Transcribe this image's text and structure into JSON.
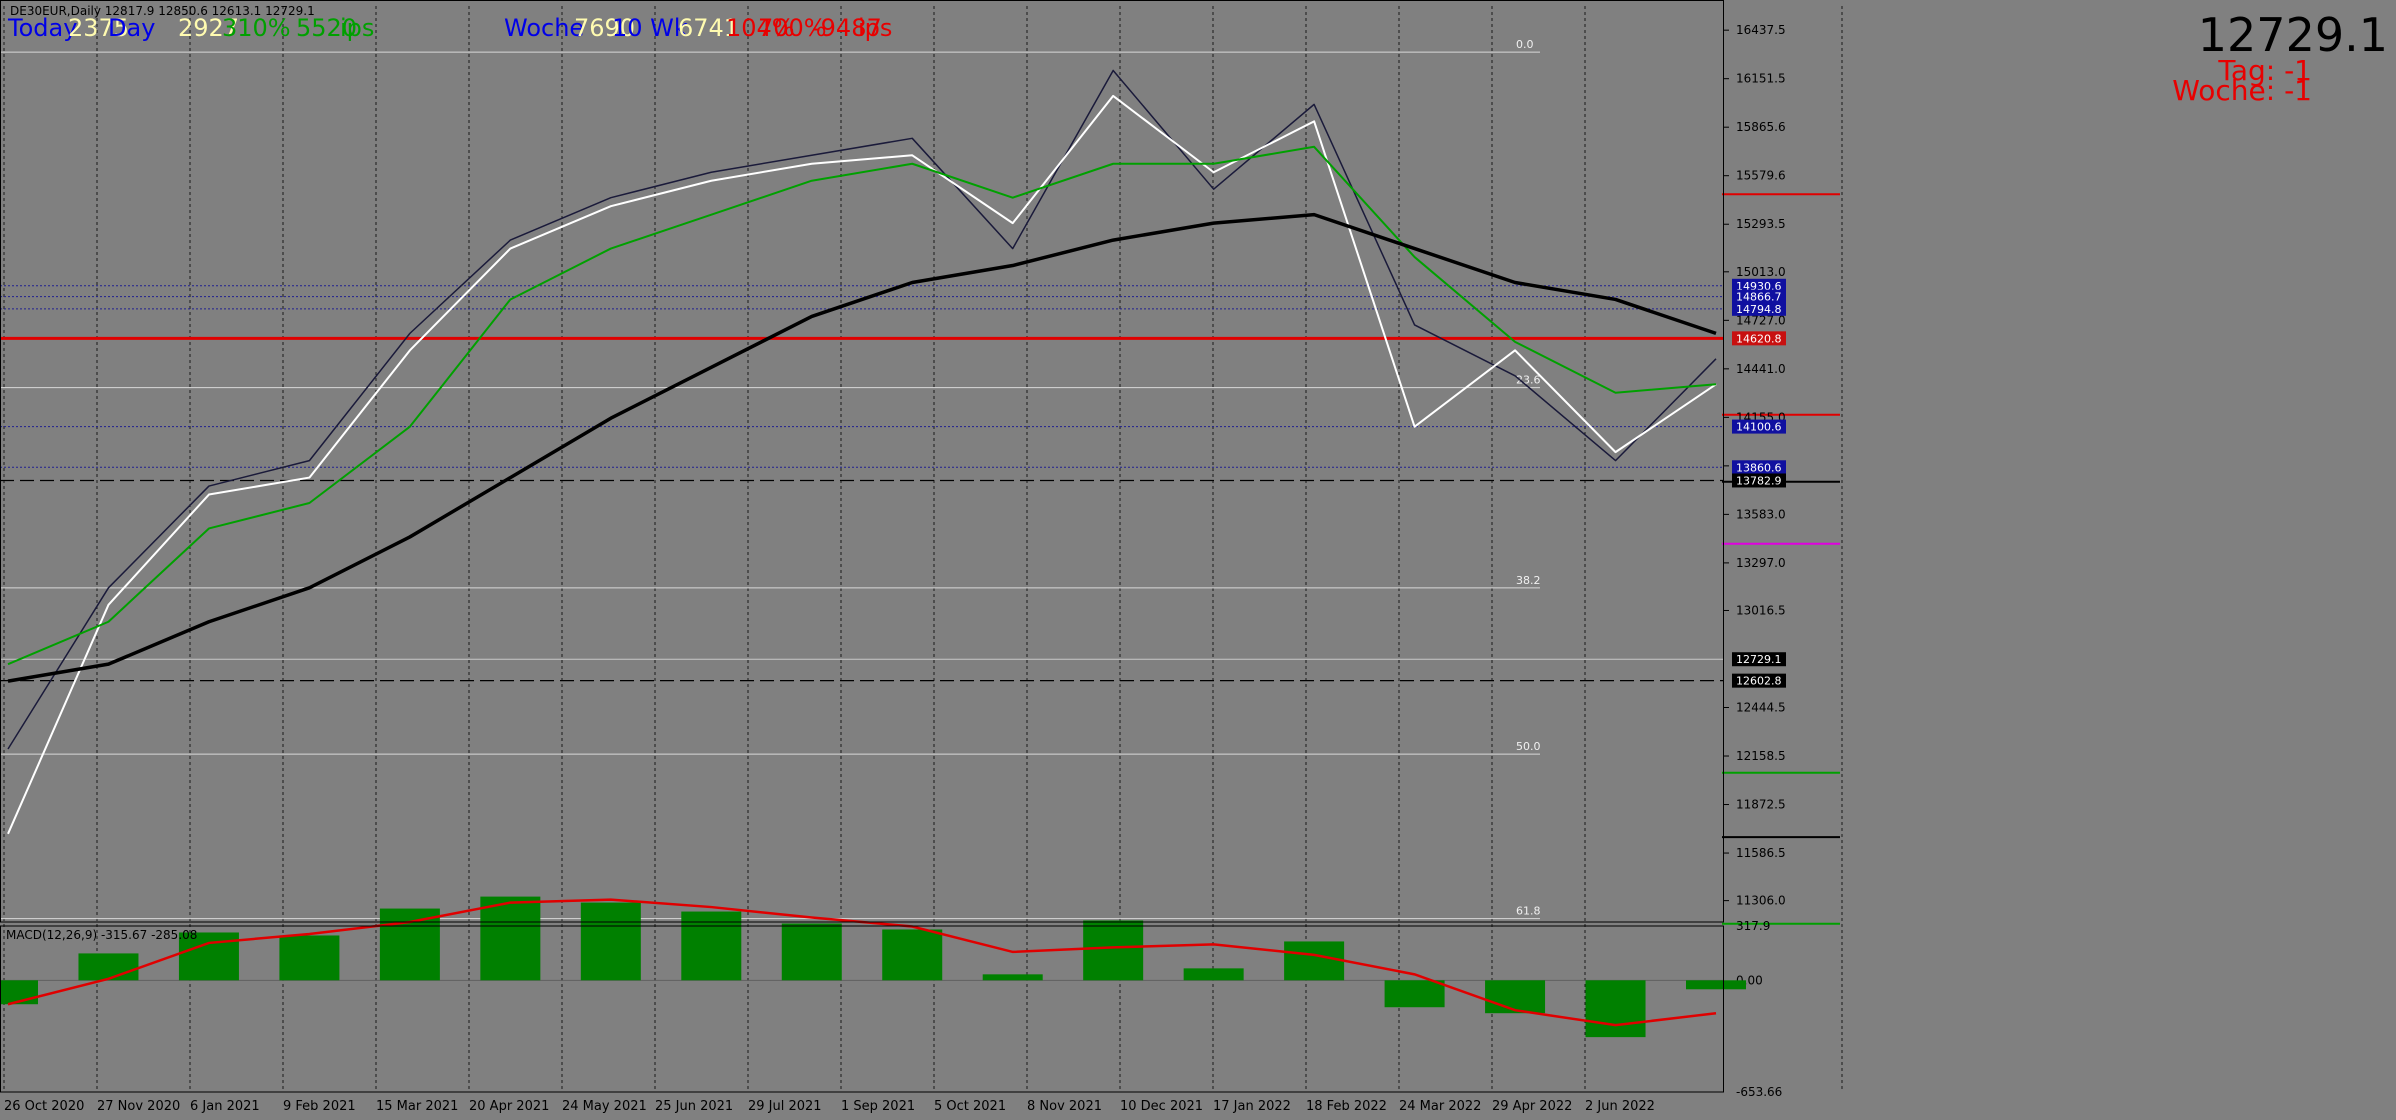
{
  "header": {
    "symbol_info": "DE30EUR,Daily  12817.9 12850.6 12613.1 12729.1",
    "last_price": "12729.1",
    "tag_label": "Tag: -1",
    "woche_label": "Woche: -1"
  },
  "stats": {
    "today_label": "Today",
    "today_value": "2375",
    "day_label": "Day",
    "day_value": "2927",
    "pct_a": "310%",
    "points_a": "5520",
    "points_b": "ips",
    "woche_label": "Woche",
    "woche_value": "7690",
    "wk_label": "10 Wk",
    "wk_value": "6741",
    "pct_b": "104%",
    "pct_c": "700%",
    "points_c": "-9487",
    "points_d": "ips"
  },
  "macd": {
    "label": "MACD(12,26,9) -315.67 -285.08",
    "axis_ticks": [
      317.9,
      0.0,
      -653.66
    ],
    "axis_tick_labels": [
      "317.9",
      "0.00",
      "-653.66"
    ],
    "ylim": [
      -653.66,
      317.9
    ]
  },
  "fibonacci": [
    {
      "label": "0.0",
      "price": 16308
    },
    {
      "label": "23.6",
      "price": 14330
    },
    {
      "label": "38.2",
      "price": 13150
    },
    {
      "label": "50.0",
      "price": 12170
    },
    {
      "label": "61.8",
      "price": 11200
    }
  ],
  "levels": {
    "resistance_red": 14620.8,
    "dashed_black_1": 13782.9,
    "dashed_black_2": 12602.8,
    "last_line": 12729.1,
    "blue_dotted": [
      14930.6,
      14866.7,
      14794.8,
      14100.6,
      13860.6
    ],
    "short_lines": [
      {
        "price": 15470,
        "color": "#e00000"
      },
      {
        "price": 14170,
        "color": "#e00000"
      },
      {
        "price": 13775,
        "color": "#000000"
      },
      {
        "price": 13410,
        "color": "#e000e0"
      },
      {
        "price": 12060,
        "color": "#00a000"
      },
      {
        "price": 11680,
        "color": "#000000"
      },
      {
        "price": 11170,
        "color": "#00a000"
      }
    ]
  },
  "chart_data": {
    "type": "line",
    "title": "DE30EUR,Daily",
    "ylim": [
      11180,
      16580
    ],
    "y_ticks": [
      16437.5,
      16151.5,
      15865.6,
      15579.6,
      15293.5,
      15013.0,
      14727.0,
      14441.0,
      14155.0,
      13869.0,
      13583.0,
      13297.0,
      13016.5,
      12444.5,
      12158.5,
      11872.5,
      11586.5,
      11306.0
    ],
    "y_tick_labels": [
      "16437.5",
      "16151.5",
      "15865.6",
      "15579.6",
      "15293.5",
      "15013.0",
      "14727.0",
      "14441.0",
      "14155.0",
      "13869.0",
      "13583.0",
      "13297.0",
      "13016.5",
      "12444.5",
      "12158.5",
      "11872.5",
      "11586.5",
      "11306.0"
    ],
    "price_labels": [
      {
        "text": "14930.6",
        "price": 14930.6,
        "bg": "#1010a0"
      },
      {
        "text": "14866.7",
        "price": 14866.7,
        "bg": "#1010a0"
      },
      {
        "text": "14794.8",
        "price": 14794.8,
        "bg": "#1010a0"
      },
      {
        "text": "14620.8",
        "price": 14620.8,
        "bg": "#c81010"
      },
      {
        "text": "14100.6",
        "price": 14100.6,
        "bg": "#1010a0"
      },
      {
        "text": "13860.6",
        "price": 13860.6,
        "bg": "#1010a0"
      },
      {
        "text": "13782.9",
        "price": 13782.9,
        "bg": "#000000"
      },
      {
        "text": "12729.1",
        "price": 12729.1,
        "bg": "#000000"
      },
      {
        "text": "12602.8",
        "price": 12602.8,
        "bg": "#000000"
      }
    ],
    "x": [
      "26 Oct 2020",
      "27 Nov 2020",
      "6 Jan 2021",
      "9 Feb 2021",
      "15 Mar 2021",
      "20 Apr 2021",
      "24 May 2021",
      "25 Jun 2021",
      "29 Jul 2021",
      "1 Sep 2021",
      "5 Oct 2021",
      "8 Nov 2021",
      "10 Dec 2021",
      "17 Jan 2022",
      "18 Feb 2022",
      "24 Mar 2022",
      "29 Apr 2022",
      "2 Jun 2022"
    ],
    "series": [
      {
        "name": "price",
        "color": "#1a1a3a",
        "values": [
          12200,
          13150,
          13750,
          13900,
          14650,
          15200,
          15450,
          15600,
          15700,
          15800,
          15150,
          16200,
          15500,
          16000,
          14700,
          14400,
          13900,
          14500
        ]
      },
      {
        "name": "ma_fast",
        "color": "#ffffff",
        "values": [
          11700,
          13050,
          13700,
          13800,
          14550,
          15150,
          15400,
          15550,
          15650,
          15700,
          15300,
          16050,
          15600,
          15900,
          14100,
          14550,
          13950,
          14350
        ]
      },
      {
        "name": "ma_mid",
        "color": "#00a000",
        "values": [
          12700,
          12950,
          13500,
          13650,
          14100,
          14850,
          15150,
          15350,
          15550,
          15650,
          15450,
          15650,
          15650,
          15750,
          15100,
          14600,
          14300,
          14350
        ]
      },
      {
        "name": "ma_slow",
        "color": "#000000",
        "values": [
          12600,
          12700,
          12950,
          13150,
          13450,
          13800,
          14150,
          14450,
          14750,
          14950,
          15050,
          15200,
          15300,
          15350,
          15150,
          14950,
          14850,
          14650
        ]
      }
    ]
  }
}
